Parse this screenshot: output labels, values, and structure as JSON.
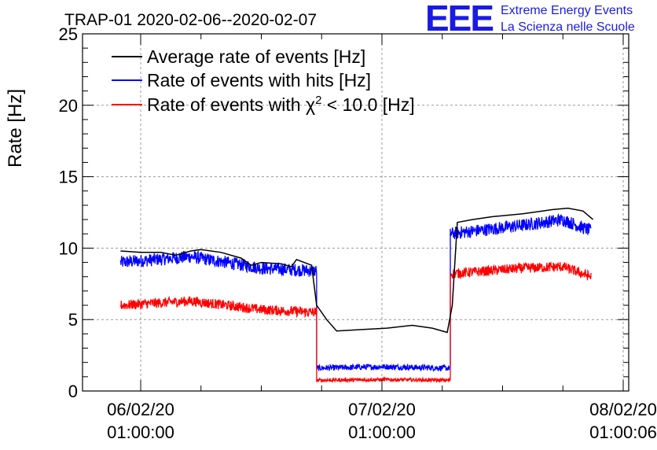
{
  "chart_data": {
    "type": "line",
    "title": "TRAP-01 2020-02-06--2020-02-07",
    "ylabel": "Rate [Hz]",
    "xlabel": "",
    "ylim": [
      0,
      25
    ],
    "yticks": [
      0,
      5,
      10,
      15,
      20,
      25
    ],
    "x_ticks": [
      {
        "date": "06/02/20",
        "time": "01:00:00",
        "hours": 0
      },
      {
        "date": "07/02/20",
        "time": "01:00:00",
        "hours": 24
      },
      {
        "date": "08/02/20",
        "time": "01:00:06",
        "hours": 48
      }
    ],
    "grid": true,
    "legend_position": "top-left",
    "series": [
      {
        "name": "Average rate of events [Hz]",
        "color": "#000000",
        "points": [
          [
            -2.0,
            9.8
          ],
          [
            0.0,
            9.7
          ],
          [
            2.0,
            9.7
          ],
          [
            3.5,
            9.5
          ],
          [
            5.0,
            9.8
          ],
          [
            6.0,
            9.9
          ],
          [
            8.0,
            9.7
          ],
          [
            10.0,
            9.3
          ],
          [
            11.0,
            8.8
          ],
          [
            12.0,
            9.0
          ],
          [
            14.0,
            8.9
          ],
          [
            15.0,
            8.7
          ],
          [
            15.5,
            9.2
          ],
          [
            17.0,
            8.8
          ],
          [
            17.5,
            6.0
          ],
          [
            18.5,
            5.0
          ],
          [
            19.5,
            4.2
          ],
          [
            22.0,
            4.3
          ],
          [
            24.5,
            4.4
          ],
          [
            27.0,
            4.6
          ],
          [
            29.0,
            4.4
          ],
          [
            30.5,
            4.1
          ],
          [
            31.0,
            6.0
          ],
          [
            31.5,
            11.8
          ],
          [
            33.0,
            12.0
          ],
          [
            35.0,
            12.2
          ],
          [
            38.0,
            12.4
          ],
          [
            41.0,
            12.7
          ],
          [
            42.5,
            12.8
          ],
          [
            44.0,
            12.6
          ],
          [
            45.0,
            12.0
          ]
        ]
      },
      {
        "name": "Rate of events with hits [Hz]",
        "color": "#0000ff",
        "segments": [
          {
            "x0": -2.0,
            "x1": 17.5,
            "mean": [
              [
                -2,
                9.0
              ],
              [
                5,
                9.4
              ],
              [
                12,
                8.6
              ],
              [
                17.5,
                8.4
              ]
            ],
            "noise": 0.45
          },
          {
            "x0": 17.5,
            "x1": 30.8,
            "mean": [
              [
                17.5,
                1.6
              ],
              [
                24,
                1.7
              ],
              [
                30.8,
                1.6
              ]
            ],
            "noise": 0.2
          },
          {
            "x0": 30.8,
            "x1": 44.8,
            "mean": [
              [
                30.8,
                11.0
              ],
              [
                38,
                11.6
              ],
              [
                42,
                12.0
              ],
              [
                44.8,
                11.2
              ]
            ],
            "noise": 0.45
          }
        ]
      },
      {
        "name": "Rate of events with χ² < 10.0 [Hz]",
        "color": "#ff0000",
        "segments": [
          {
            "x0": -2.0,
            "x1": 17.5,
            "mean": [
              [
                -2,
                6.0
              ],
              [
                5,
                6.3
              ],
              [
                12,
                5.7
              ],
              [
                17.5,
                5.5
              ]
            ],
            "noise": 0.35
          },
          {
            "x0": 17.5,
            "x1": 30.8,
            "mean": [
              [
                17.5,
                0.75
              ],
              [
                24,
                0.8
              ],
              [
                30.8,
                0.75
              ]
            ],
            "noise": 0.12
          },
          {
            "x0": 30.8,
            "x1": 44.8,
            "mean": [
              [
                30.8,
                8.2
              ],
              [
                38,
                8.6
              ],
              [
                42,
                8.7
              ],
              [
                44.8,
                8.0
              ]
            ],
            "noise": 0.35
          }
        ]
      }
    ]
  },
  "legend": {
    "avg": "Average rate of events [Hz]",
    "hits": "Rate of events with hits [Hz]",
    "chi_prefix": "Rate of events with ",
    "chi_symbol": "χ",
    "chi_sup": "2",
    "chi_suffix": " < 10.0 [Hz]"
  },
  "logo": {
    "mark": "EEE",
    "line1": "Extreme Energy Events",
    "line2": "La Scienza nelle Scuole",
    "color": "#1a1ae6"
  }
}
